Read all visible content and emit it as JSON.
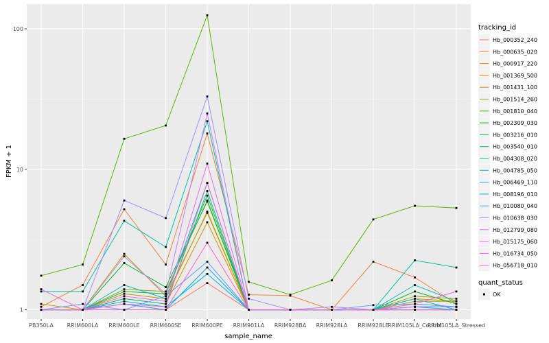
{
  "chart_data": {
    "type": "line",
    "xlabel": "sample_name",
    "ylabel": "FPKM + 1",
    "y_scale": "log10",
    "ylim": [
      0.86,
      150
    ],
    "y_ticks": [
      1,
      10,
      100
    ],
    "y_tick_labels": [
      "1",
      "10",
      "100"
    ],
    "grid": true,
    "categories": [
      "PB350LA",
      "RRIM600LA",
      "RRIM600LE",
      "RRIM600SE",
      "RRIM600PE",
      "RRIM901LA",
      "RRIM928BA",
      "RRIM928LA",
      "RRIM928LE",
      "RRIM105LA_Control",
      "RRIM105LA_Stressed"
    ],
    "legend": {
      "placement": "right",
      "color_title": "tracking_id",
      "shape_title": "quant_status",
      "shape_entries": [
        "OK"
      ]
    },
    "series": [
      {
        "name": "Hb_000352_240",
        "color": "#F8766D",
        "values": [
          1.0,
          1.0,
          1.1,
          1.0,
          1.55,
          1.0,
          1.0,
          1.0,
          1.0,
          1.0,
          1.0
        ]
      },
      {
        "name": "Hb_000635_020",
        "color": "#EC823C",
        "values": [
          1.05,
          1.5,
          5.2,
          2.1,
          18.0,
          1.28,
          1.26,
          1.0,
          2.2,
          1.7,
          1.1
        ]
      },
      {
        "name": "Hb_000917_220",
        "color": "#DD8D00",
        "values": [
          1.0,
          1.0,
          1.2,
          1.1,
          4.2,
          1.0,
          1.0,
          1.0,
          1.0,
          1.2,
          1.15
        ]
      },
      {
        "name": "Hb_001369_500",
        "color": "#CB9700",
        "values": [
          1.1,
          1.0,
          1.3,
          1.2,
          5.0,
          1.0,
          1.0,
          1.0,
          1.0,
          1.1,
          1.05
        ]
      },
      {
        "name": "Hb_001431_100",
        "color": "#B4A000",
        "values": [
          1.0,
          1.0,
          2.5,
          1.25,
          4.9,
          1.0,
          1.0,
          1.0,
          1.0,
          1.25,
          1.2
        ]
      },
      {
        "name": "Hb_001514_260",
        "color": "#99A800",
        "values": [
          1.0,
          1.0,
          1.4,
          1.35,
          6.0,
          1.0,
          1.0,
          1.0,
          1.0,
          1.15,
          1.15
        ]
      },
      {
        "name": "Hb_001810_040",
        "color": "#5BB300",
        "values": [
          1.75,
          2.1,
          16.5,
          20.5,
          125.0,
          1.58,
          1.28,
          1.62,
          4.4,
          5.5,
          5.3
        ]
      },
      {
        "name": "Hb_002309_030",
        "color": "#00B81F",
        "values": [
          1.0,
          1.0,
          2.15,
          1.45,
          5.9,
          1.0,
          1.0,
          1.0,
          1.0,
          1.35,
          1.1
        ]
      },
      {
        "name": "Hb_003216_010",
        "color": "#00BC59",
        "values": [
          1.0,
          1.0,
          1.35,
          1.3,
          6.5,
          1.0,
          1.0,
          1.0,
          1.0,
          1.05,
          1.05
        ]
      },
      {
        "name": "Hb_003540_010",
        "color": "#00BF7D",
        "values": [
          1.0,
          1.0,
          1.2,
          1.1,
          7.0,
          1.0,
          1.0,
          1.0,
          1.0,
          1.0,
          1.0
        ]
      },
      {
        "name": "Hb_004308_020",
        "color": "#00C09F",
        "values": [
          1.35,
          1.35,
          4.3,
          2.8,
          22.0,
          1.0,
          1.0,
          1.0,
          1.0,
          2.25,
          2.0
        ]
      },
      {
        "name": "Hb_004785_050",
        "color": "#00BDBD",
        "values": [
          1.0,
          1.0,
          1.5,
          1.2,
          8.0,
          1.0,
          1.0,
          1.0,
          1.0,
          1.5,
          1.15
        ]
      },
      {
        "name": "Hb_006469_110",
        "color": "#00B6D8",
        "values": [
          1.0,
          1.0,
          1.15,
          1.05,
          1.8,
          1.0,
          1.0,
          1.0,
          1.0,
          1.2,
          1.0
        ]
      },
      {
        "name": "Hb_008196_010",
        "color": "#00ABEF",
        "values": [
          1.0,
          1.0,
          1.1,
          1.0,
          2.0,
          1.0,
          1.0,
          1.0,
          1.0,
          1.05,
          1.0
        ]
      },
      {
        "name": "Hb_010080_040",
        "color": "#619CFF",
        "values": [
          1.0,
          1.1,
          1.0,
          1.25,
          2.2,
          1.0,
          1.0,
          1.0,
          1.08,
          1.1,
          1.05
        ]
      },
      {
        "name": "Hb_010638_030",
        "color": "#9F8CFF",
        "values": [
          1.0,
          1.0,
          6.0,
          4.5,
          33.0,
          1.2,
          1.0,
          1.05,
          1.0,
          1.05,
          1.05
        ]
      },
      {
        "name": "Hb_012799_080",
        "color": "#C77CFF",
        "values": [
          1.0,
          1.0,
          2.4,
          1.3,
          25.0,
          1.0,
          1.0,
          1.0,
          1.0,
          1.0,
          1.0
        ]
      },
      {
        "name": "Hb_015175_060",
        "color": "#E76BF3",
        "values": [
          1.0,
          1.0,
          1.25,
          1.15,
          11.0,
          1.0,
          1.0,
          1.0,
          1.0,
          1.0,
          1.0
        ]
      },
      {
        "name": "Hb_016734_050",
        "color": "#FA62DB",
        "values": [
          1.4,
          1.0,
          1.1,
          1.05,
          8.0,
          1.0,
          1.0,
          1.0,
          1.0,
          1.1,
          1.35
        ]
      },
      {
        "name": "Hb_056718_010",
        "color": "#FF61C3",
        "values": [
          1.0,
          1.0,
          1.0,
          1.0,
          3.0,
          1.0,
          1.0,
          1.0,
          1.0,
          1.0,
          1.0
        ]
      }
    ]
  }
}
